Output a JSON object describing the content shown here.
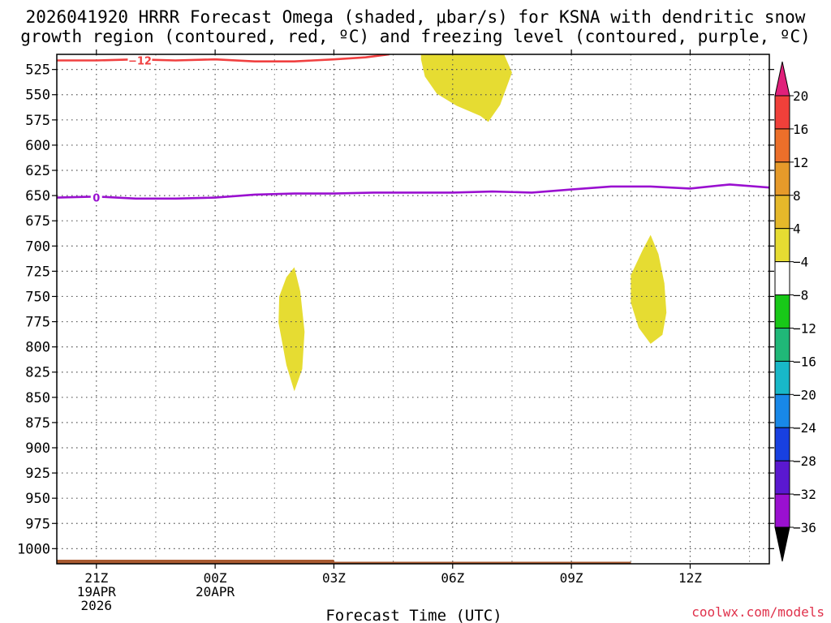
{
  "chart_data": {
    "type": "time-height cross section",
    "title_line1": "2026041920 HRRR Forecast Omega (shaded, μbar/s) for KSNA with dendritic snow",
    "title_line2": "growth region (contoured, red, ºC) and freezing level (contoured, purple, ºC)",
    "xlabel": "Forecast Time (UTC)",
    "credit": "coolwx.com/models",
    "y_ticks": [
      525,
      550,
      575,
      600,
      625,
      650,
      675,
      700,
      725,
      750,
      775,
      800,
      825,
      850,
      875,
      900,
      925,
      950,
      975,
      1000
    ],
    "y_tick_labels": [
      "525",
      "550",
      "575",
      "600",
      "625",
      "650",
      "675",
      "700",
      "725",
      "750",
      "775",
      "800",
      "825",
      "850",
      "875",
      "900",
      "925",
      "950",
      "975",
      "1000"
    ],
    "y_range_hPa": [
      510,
      1015
    ],
    "x_range_hours": [
      -1.0,
      17.0
    ],
    "x_ticks": [
      {
        "hour": 0,
        "lines": [
          "21Z",
          "19APR",
          "2026"
        ]
      },
      {
        "hour": 3,
        "lines": [
          "00Z",
          "20APR"
        ]
      },
      {
        "hour": 6,
        "lines": [
          "03Z"
        ]
      },
      {
        "hour": 9,
        "lines": [
          "06Z"
        ]
      },
      {
        "hour": 12,
        "lines": [
          "09Z"
        ]
      },
      {
        "hour": 15,
        "lines": [
          "12Z"
        ]
      }
    ],
    "shaded_regions": [
      {
        "name": "omega 4-8 region upper",
        "color": "#e6dc32",
        "points": [
          [
            8.2,
            510
          ],
          [
            10.3,
            510
          ],
          [
            10.5,
            528
          ],
          [
            10.2,
            560
          ],
          [
            9.9,
            577
          ],
          [
            9.7,
            571
          ],
          [
            9.1,
            561
          ],
          [
            8.6,
            549
          ],
          [
            8.3,
            532
          ],
          [
            8.2,
            515
          ]
        ]
      },
      {
        "name": "omega 4-8 region left",
        "color": "#e6dc32",
        "points": [
          [
            5.0,
            721
          ],
          [
            5.15,
            745
          ],
          [
            5.26,
            785
          ],
          [
            5.2,
            822
          ],
          [
            5.0,
            844
          ],
          [
            4.8,
            818
          ],
          [
            4.6,
            776
          ],
          [
            4.62,
            750
          ],
          [
            4.8,
            731
          ]
        ]
      },
      {
        "name": "omega 4-8 region right",
        "color": "#e6dc32",
        "points": [
          [
            14.0,
            689
          ],
          [
            14.2,
            708
          ],
          [
            14.35,
            737
          ],
          [
            14.4,
            766
          ],
          [
            14.3,
            788
          ],
          [
            14.0,
            797
          ],
          [
            13.7,
            781
          ],
          [
            13.5,
            756
          ],
          [
            13.5,
            729
          ],
          [
            13.8,
            704
          ]
        ]
      }
    ],
    "series": [
      {
        "name": "-12 ºC isotherm",
        "color": "#f04040",
        "label": "−12",
        "label_at": [
          1.1,
          516
        ],
        "x": [
          -1.0,
          0.0,
          1.0,
          2.0,
          3.0,
          4.0,
          5.0,
          6.0,
          6.8,
          7.4
        ],
        "y": [
          516,
          516,
          515,
          516,
          515,
          517,
          517,
          515,
          513,
          510
        ]
      },
      {
        "name": "0 ºC freezing level",
        "color": "#9a10d0",
        "label": "0",
        "label_at": [
          0.0,
          652
        ],
        "x": [
          -1.0,
          0.0,
          1.0,
          2.0,
          3.0,
          4.0,
          5.0,
          6.0,
          7.0,
          8.0,
          9.0,
          10.0,
          11.0,
          12.0,
          13.0,
          14.0,
          15.0,
          16.0,
          17.0
        ],
        "y": [
          652,
          651,
          653,
          653,
          652,
          649,
          648,
          648,
          647,
          647,
          647,
          646,
          647,
          644,
          641,
          641,
          643,
          639,
          642
        ]
      }
    ],
    "terrain": {
      "name": "surface",
      "color": "#a85a30",
      "x": [
        -1.0,
        6.0,
        6.01,
        13.5,
        13.51,
        17.0
      ],
      "y": [
        1011,
        1011,
        1013,
        1013,
        1015,
        1015
      ]
    },
    "colorbar": {
      "labels": [
        "20",
        "16",
        "12",
        "8",
        "4",
        "−4",
        "−8",
        "−12",
        "−16",
        "−20",
        "−24",
        "−28",
        "−32",
        "−36"
      ],
      "colors": [
        "#f0403a",
        "#ec6f2a",
        "#e69a2a",
        "#e5b82a",
        "#e6dc32",
        "#ffffff",
        "#18c818",
        "#20b878",
        "#18b8c8",
        "#1888e8",
        "#1840e0",
        "#5a18d0",
        "#9a10d0",
        "#a0a0a0"
      ],
      "top_color": "#e0207a",
      "bottom_color": "#000000"
    }
  }
}
